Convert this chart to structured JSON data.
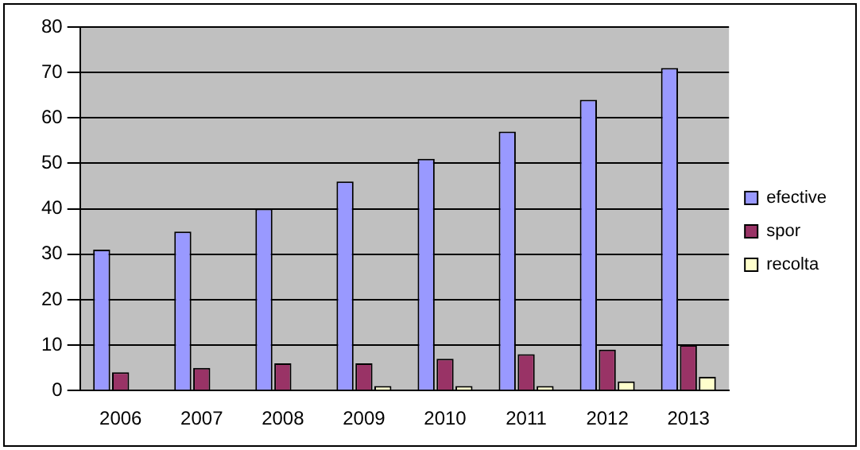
{
  "chart_data": {
    "type": "bar",
    "categories": [
      "2006",
      "2007",
      "2008",
      "2009",
      "2010",
      "2011",
      "2012",
      "2013"
    ],
    "series": [
      {
        "name": "efective",
        "color": "#9999ff",
        "values": [
          31,
          35,
          40,
          46,
          51,
          57,
          64,
          71
        ]
      },
      {
        "name": "spor",
        "color": "#993366",
        "values": [
          4,
          5,
          6,
          6,
          7,
          8,
          9,
          10
        ]
      },
      {
        "name": "recolta",
        "color": "#ffffcc",
        "values": [
          0,
          0,
          0,
          1,
          1,
          1,
          2,
          3
        ]
      }
    ],
    "ylim": [
      0,
      80
    ],
    "yticks": [
      0,
      10,
      20,
      30,
      40,
      50,
      60,
      70,
      80
    ],
    "grid": "y",
    "legend": "right"
  }
}
